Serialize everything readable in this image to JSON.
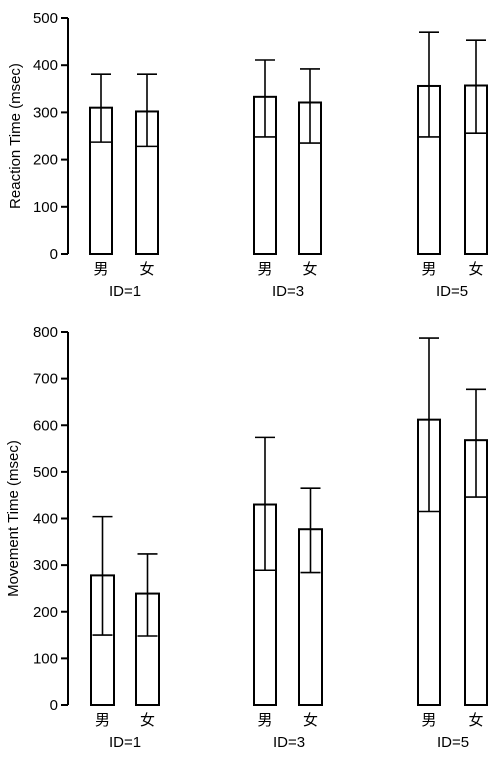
{
  "chart_data": [
    {
      "type": "bar",
      "ylabel": "Reaction Time (msec)",
      "ylim": [
        0,
        500
      ],
      "yticks": [
        0,
        100,
        200,
        300,
        400,
        500
      ],
      "groups": [
        "ID=1",
        "ID=3",
        "ID=5"
      ],
      "categories": [
        "男",
        "女"
      ],
      "series": [
        {
          "group": "ID=1",
          "values": [
            310,
            302
          ],
          "error_low": [
            237,
            228
          ],
          "error_high": [
            381,
            381
          ]
        },
        {
          "group": "ID=3",
          "values": [
            333,
            321
          ],
          "error_low": [
            248,
            235
          ],
          "error_high": [
            411,
            392
          ]
        },
        {
          "group": "ID=5",
          "values": [
            356,
            357
          ],
          "error_low": [
            248,
            256
          ],
          "error_high": [
            470,
            453
          ]
        }
      ]
    },
    {
      "type": "bar",
      "ylabel": "Movement Time (msec)",
      "ylim": [
        0,
        800
      ],
      "yticks": [
        0,
        100,
        200,
        300,
        400,
        500,
        600,
        700,
        800
      ],
      "groups": [
        "ID=1",
        "ID=3",
        "ID=5"
      ],
      "categories": [
        "男",
        "女"
      ],
      "series": [
        {
          "group": "ID=1",
          "values": [
            278,
            239
          ],
          "error_low": [
            150,
            148
          ],
          "error_high": [
            404,
            324
          ]
        },
        {
          "group": "ID=3",
          "values": [
            430,
            377
          ],
          "error_low": [
            289,
            284
          ],
          "error_high": [
            574,
            465
          ]
        },
        {
          "group": "ID=5",
          "values": [
            612,
            568
          ],
          "error_low": [
            415,
            446
          ],
          "error_high": [
            787,
            677
          ]
        }
      ]
    }
  ]
}
